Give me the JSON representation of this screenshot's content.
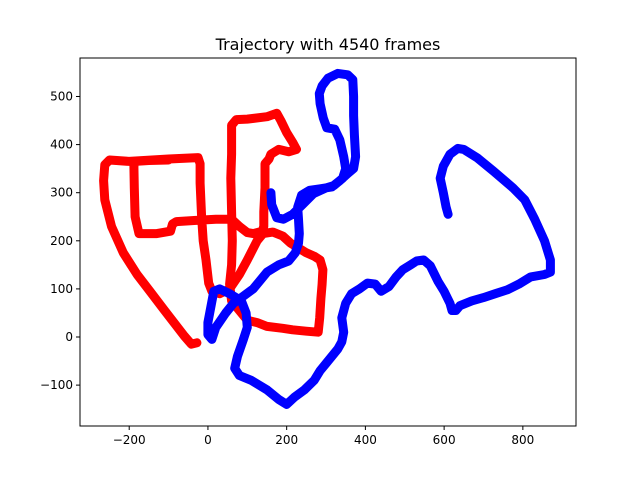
{
  "chart_data": {
    "type": "line",
    "title": "Trajectory with 4540 frames",
    "xlabel": "",
    "ylabel": "",
    "xlim": [
      -325,
      935
    ],
    "ylim": [
      -185,
      580
    ],
    "xticks": [
      -200,
      0,
      200,
      400,
      600,
      800
    ],
    "yticks": [
      -100,
      0,
      100,
      200,
      300,
      400,
      500
    ],
    "xtick_labels": [
      "−200",
      "0",
      "200",
      "400",
      "600",
      "800"
    ],
    "ytick_labels": [
      "−100",
      "0",
      "100",
      "200",
      "300",
      "400",
      "500"
    ],
    "grid": false,
    "legend": "none",
    "series": [
      {
        "color": "#ff0000",
        "points": [
          [
            -28,
            -12
          ],
          [
            -42,
            -15
          ],
          [
            -60,
            2
          ],
          [
            -110,
            55
          ],
          [
            -150,
            98
          ],
          [
            -180,
            130
          ],
          [
            -215,
            175
          ],
          [
            -245,
            230
          ],
          [
            -262,
            285
          ],
          [
            -265,
            325
          ],
          [
            -262,
            358
          ],
          [
            -250,
            368
          ],
          [
            -200,
            365
          ],
          [
            -100,
            370
          ],
          [
            -25,
            373
          ],
          [
            -20,
            360
          ],
          [
            -20,
            320
          ],
          [
            -16,
            250
          ],
          [
            -12,
            200
          ],
          [
            -5,
            160
          ],
          [
            2,
            112
          ],
          [
            10,
            95
          ],
          [
            30,
            90
          ],
          [
            55,
            100
          ],
          [
            80,
            130
          ],
          [
            100,
            160
          ],
          [
            125,
            200
          ],
          [
            140,
            215
          ],
          [
            165,
            218
          ],
          [
            190,
            210
          ],
          [
            210,
            195
          ],
          [
            230,
            185
          ],
          [
            250,
            175
          ],
          [
            270,
            168
          ],
          [
            285,
            160
          ],
          [
            292,
            140
          ],
          [
            290,
            110
          ],
          [
            287,
            80
          ],
          [
            284,
            40
          ],
          [
            280,
            10
          ],
          [
            250,
            12
          ],
          [
            215,
            15
          ],
          [
            190,
            18
          ],
          [
            150,
            22
          ],
          [
            125,
            30
          ],
          [
            100,
            35
          ],
          [
            80,
            55
          ],
          [
            60,
            75
          ],
          [
            55,
            110
          ],
          [
            60,
            150
          ],
          [
            62,
            200
          ],
          [
            60,
            260
          ],
          [
            58,
            330
          ],
          [
            60,
            380
          ],
          [
            60,
            440
          ],
          [
            72,
            452
          ],
          [
            100,
            453
          ],
          [
            150,
            458
          ],
          [
            175,
            465
          ],
          [
            185,
            450
          ],
          [
            200,
            425
          ],
          [
            215,
            405
          ],
          [
            225,
            390
          ],
          [
            205,
            385
          ],
          [
            180,
            390
          ],
          [
            160,
            380
          ],
          [
            155,
            370
          ],
          [
            145,
            360
          ],
          [
            145,
            310
          ],
          [
            142,
            260
          ],
          [
            142,
            230
          ],
          [
            138,
            220
          ],
          [
            115,
            215
          ],
          [
            100,
            217
          ],
          [
            80,
            230
          ],
          [
            60,
            245
          ],
          [
            20,
            245
          ],
          [
            -20,
            243
          ],
          [
            -80,
            240
          ],
          [
            -90,
            235
          ],
          [
            -95,
            220
          ],
          [
            -130,
            215
          ],
          [
            -175,
            215
          ],
          [
            -185,
            250
          ],
          [
            -187,
            310
          ],
          [
            -188,
            355
          ],
          [
            -185,
            365
          ],
          [
            -150,
            367
          ],
          [
            -100,
            368
          ]
        ]
      },
      {
        "color": "#0000ff",
        "points": [
          [
            610,
            255
          ],
          [
            605,
            270
          ],
          [
            598,
            300
          ],
          [
            590,
            330
          ],
          [
            598,
            355
          ],
          [
            615,
            380
          ],
          [
            635,
            392
          ],
          [
            650,
            390
          ],
          [
            685,
            372
          ],
          [
            725,
            345
          ],
          [
            775,
            310
          ],
          [
            805,
            285
          ],
          [
            830,
            245
          ],
          [
            855,
            200
          ],
          [
            870,
            160
          ],
          [
            870,
            135
          ],
          [
            855,
            130
          ],
          [
            820,
            125
          ],
          [
            790,
            110
          ],
          [
            760,
            98
          ],
          [
            730,
            90
          ],
          [
            700,
            82
          ],
          [
            670,
            75
          ],
          [
            640,
            65
          ],
          [
            630,
            55
          ],
          [
            620,
            55
          ],
          [
            615,
            70
          ],
          [
            600,
            95
          ],
          [
            585,
            115
          ],
          [
            565,
            148
          ],
          [
            548,
            160
          ],
          [
            530,
            158
          ],
          [
            515,
            150
          ],
          [
            495,
            140
          ],
          [
            478,
            125
          ],
          [
            460,
            105
          ],
          [
            440,
            95
          ],
          [
            425,
            110
          ],
          [
            405,
            112
          ],
          [
            385,
            100
          ],
          [
            365,
            90
          ],
          [
            350,
            70
          ],
          [
            340,
            40
          ],
          [
            345,
            10
          ],
          [
            340,
            -10
          ],
          [
            330,
            -25
          ],
          [
            300,
            -55
          ],
          [
            285,
            -70
          ],
          [
            270,
            -90
          ],
          [
            245,
            -110
          ],
          [
            220,
            -125
          ],
          [
            200,
            -140
          ],
          [
            180,
            -130
          ],
          [
            150,
            -110
          ],
          [
            110,
            -90
          ],
          [
            80,
            -80
          ],
          [
            68,
            -65
          ],
          [
            75,
            -40
          ],
          [
            90,
            -5
          ],
          [
            100,
            20
          ],
          [
            97,
            50
          ],
          [
            85,
            75
          ],
          [
            55,
            90
          ],
          [
            30,
            100
          ],
          [
            15,
            95
          ],
          [
            0,
            30
          ],
          [
            0,
            5
          ],
          [
            10,
            -5
          ],
          [
            20,
            20
          ],
          [
            45,
            50
          ],
          [
            65,
            70
          ],
          [
            90,
            85
          ],
          [
            115,
            100
          ],
          [
            150,
            135
          ],
          [
            180,
            150
          ],
          [
            205,
            158
          ],
          [
            222,
            175
          ],
          [
            230,
            195
          ],
          [
            232,
            215
          ],
          [
            230,
            245
          ],
          [
            228,
            270
          ],
          [
            238,
            295
          ],
          [
            258,
            305
          ],
          [
            285,
            308
          ],
          [
            315,
            312
          ],
          [
            335,
            325
          ],
          [
            355,
            340
          ],
          [
            370,
            350
          ],
          [
            375,
            375
          ],
          [
            372,
            420
          ],
          [
            370,
            460
          ],
          [
            370,
            500
          ],
          [
            368,
            535
          ],
          [
            355,
            545
          ],
          [
            330,
            548
          ],
          [
            305,
            538
          ],
          [
            290,
            522
          ],
          [
            283,
            506
          ],
          [
            285,
            485
          ],
          [
            293,
            455
          ],
          [
            302,
            435
          ],
          [
            322,
            432
          ],
          [
            335,
            410
          ],
          [
            345,
            375
          ],
          [
            350,
            350
          ],
          [
            342,
            330
          ],
          [
            320,
            315
          ],
          [
            300,
            310
          ],
          [
            268,
            298
          ],
          [
            240,
            275
          ],
          [
            215,
            255
          ],
          [
            192,
            245
          ],
          [
            175,
            248
          ],
          [
            162,
            275
          ],
          [
            160,
            300
          ]
        ]
      }
    ]
  }
}
